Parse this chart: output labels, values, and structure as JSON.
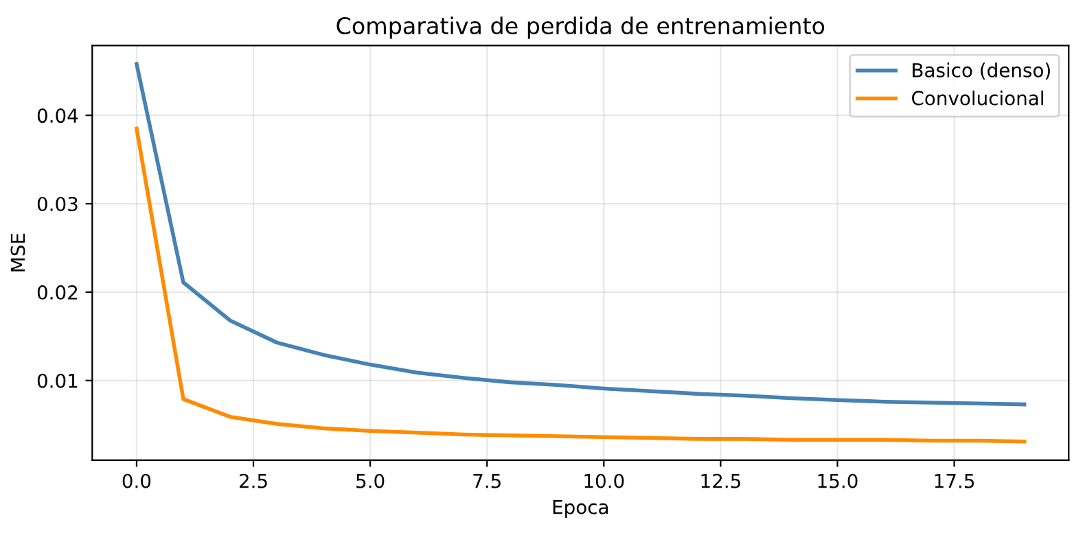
{
  "chart_data": {
    "type": "line",
    "title": "Comparativa de perdida de entrenamiento",
    "xlabel": "Epoca",
    "ylabel": "MSE",
    "x": [
      0,
      1,
      2,
      3,
      4,
      5,
      6,
      7,
      8,
      9,
      10,
      11,
      12,
      13,
      14,
      15,
      16,
      17,
      18,
      19
    ],
    "series": [
      {
        "name": "Basico (denso)",
        "color": "#4682b4",
        "values": [
          0.0458,
          0.0211,
          0.0168,
          0.0143,
          0.0129,
          0.0118,
          0.0109,
          0.0103,
          0.0098,
          0.0095,
          0.0091,
          0.0088,
          0.0085,
          0.0083,
          0.008,
          0.0078,
          0.0076,
          0.0075,
          0.0074,
          0.0073
        ]
      },
      {
        "name": "Convolucional",
        "color": "#ff8c00",
        "values": [
          0.0385,
          0.0079,
          0.0059,
          0.0051,
          0.0046,
          0.0043,
          0.0041,
          0.0039,
          0.0038,
          0.0037,
          0.0036,
          0.0035,
          0.0034,
          0.0034,
          0.0033,
          0.0033,
          0.0033,
          0.0032,
          0.0032,
          0.0031
        ]
      }
    ],
    "xlim": [
      -0.95,
      19.95
    ],
    "xticks": [
      {
        "value": 0,
        "label": "0.0"
      },
      {
        "value": 2.5,
        "label": "2.5"
      },
      {
        "value": 5,
        "label": "5.0"
      },
      {
        "value": 7.5,
        "label": "7.5"
      },
      {
        "value": 10,
        "label": "10.0"
      },
      {
        "value": 12.5,
        "label": "12.5"
      },
      {
        "value": 15,
        "label": "15.0"
      },
      {
        "value": 17.5,
        "label": "17.5"
      }
    ],
    "ylim": [
      0.001,
      0.0479
    ],
    "yticks": [
      0.01,
      0.02,
      0.03,
      0.04
    ],
    "grid": true,
    "legend": "top right",
    "marker": "none",
    "line_style": "solid"
  }
}
